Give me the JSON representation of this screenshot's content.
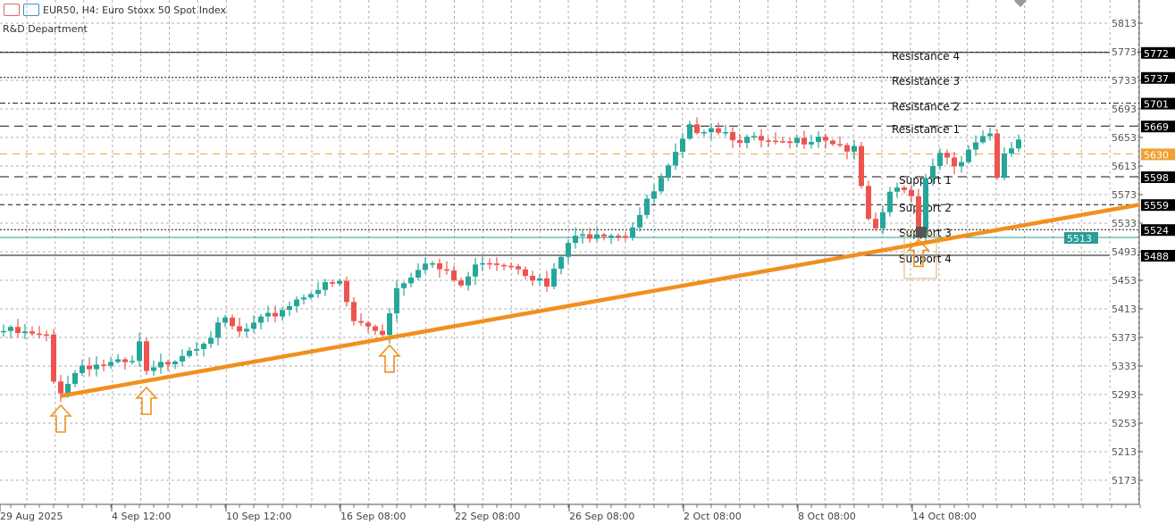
{
  "header": {
    "symbol_title": "EUR50, H4:  Euro Stoxx 50 Spot Index",
    "subtitle": "R&D Department",
    "icons": [
      "list-icon",
      "chart-mode-icon"
    ]
  },
  "colors": {
    "bull": "#26a69a",
    "bear": "#ef5350",
    "trendline": "#f0901e",
    "current_price": "#f0a030",
    "teal_line": "#2a9d96",
    "grid": "#b0b0b0"
  },
  "chart_data": {
    "type": "candlestick",
    "title": "EUR50, H4: Euro Stoxx 50 Spot Index",
    "ylim": [
      5150,
      5845
    ],
    "y_ticks": [
      5813,
      5773,
      5733,
      5693,
      5653,
      5613,
      5573,
      5533,
      5493,
      5453,
      5413,
      5373,
      5333,
      5293,
      5253,
      5213,
      5173
    ],
    "x_ticks": [
      {
        "label": "29 Aug 2025",
        "index": 0
      },
      {
        "label": "4 Sep 12:00",
        "index": 15
      },
      {
        "label": "10 Sep 12:00",
        "index": 31
      },
      {
        "label": "16 Sep 08:00",
        "index": 47
      },
      {
        "label": "22 Sep 08:00",
        "index": 63
      },
      {
        "label": "26 Sep 08:00",
        "index": 79
      },
      {
        "label": "2 Oct 08:00",
        "index": 95
      },
      {
        "label": "8 Oct 08:00",
        "index": 111
      },
      {
        "label": "14 Oct 08:00",
        "index": 127
      }
    ],
    "candle_count": 143,
    "close_path": [
      [
        0,
        5382
      ],
      [
        6,
        5372
      ],
      [
        7,
        5310
      ],
      [
        8,
        5300
      ],
      [
        11,
        5335
      ],
      [
        18,
        5335
      ],
      [
        19,
        5365
      ],
      [
        20,
        5320
      ],
      [
        23,
        5340
      ],
      [
        29,
        5377
      ],
      [
        31,
        5395
      ],
      [
        33,
        5378
      ],
      [
        37,
        5400
      ],
      [
        43,
        5440
      ],
      [
        47,
        5448
      ],
      [
        49,
        5395
      ],
      [
        53,
        5380
      ],
      [
        55,
        5443
      ],
      [
        59,
        5483
      ],
      [
        64,
        5445
      ],
      [
        67,
        5483
      ],
      [
        72,
        5475
      ],
      [
        76,
        5443
      ],
      [
        79,
        5505
      ],
      [
        83,
        5523
      ],
      [
        87,
        5518
      ],
      [
        89,
        5545
      ],
      [
        93,
        5608
      ],
      [
        96,
        5664
      ],
      [
        99,
        5670
      ],
      [
        103,
        5652
      ],
      [
        109,
        5640
      ],
      [
        114,
        5658
      ],
      [
        119,
        5633
      ],
      [
        121,
        5533
      ],
      [
        122,
        5518
      ],
      [
        124,
        5577
      ],
      [
        127,
        5577
      ],
      [
        128,
        5518
      ],
      [
        129,
        5602
      ],
      [
        131,
        5633
      ],
      [
        134,
        5614
      ],
      [
        136,
        5645
      ],
      [
        138,
        5652
      ],
      [
        139,
        5595
      ],
      [
        140,
        5627
      ],
      [
        142,
        5652
      ]
    ],
    "levels": [
      {
        "price": 5772,
        "label": "Resistance 4",
        "tag": "5772",
        "style": "solid"
      },
      {
        "price": 5737,
        "label": "Resistance 3",
        "tag": "5737",
        "style": "dotted"
      },
      {
        "price": 5701,
        "label": "Resistance 2",
        "tag": "5701",
        "style": "dashdot"
      },
      {
        "price": 5669,
        "label": "Resistance 1",
        "tag": "5669",
        "style": "longdash"
      },
      {
        "price": 5598,
        "label": "Support 1",
        "tag": "5598",
        "style": "longdash"
      },
      {
        "price": 5559,
        "label": "Support 2",
        "tag": "5559",
        "style": "dashed"
      },
      {
        "price": 5524,
        "label": "Support 3",
        "tag": "5524",
        "style": "dotted"
      },
      {
        "price": 5488,
        "label": "Support 4",
        "tag": "5488",
        "style": "solid"
      }
    ],
    "current_price": {
      "price": 5630,
      "tag": "5630"
    },
    "teal_level": {
      "price": 5513,
      "tag": "5513"
    },
    "trendline": {
      "from": [
        8,
        5291
      ],
      "to": [
        159,
        5559
      ]
    },
    "up_arrows": [
      {
        "index": 8,
        "price": 5258
      },
      {
        "index": 20,
        "price": 5283
      },
      {
        "index": 54,
        "price": 5342
      },
      {
        "index": 128,
        "price": 5490
      }
    ]
  }
}
